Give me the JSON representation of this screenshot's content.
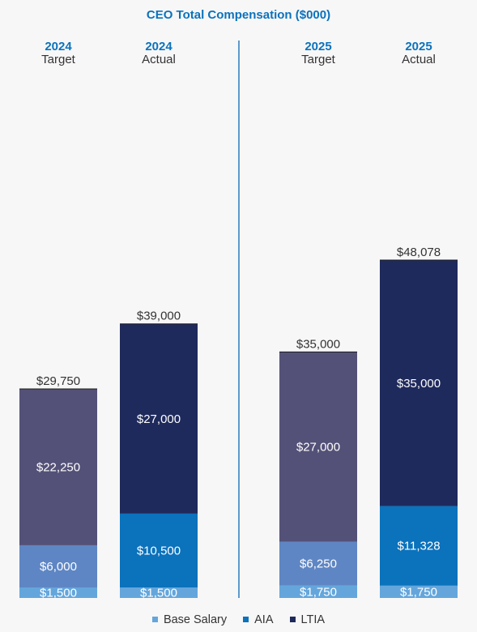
{
  "chart_data": {
    "type": "bar",
    "stacked": true,
    "title": "CEO Total Compensation ($000)",
    "groups": [
      {
        "year": "2024",
        "label": "Target",
        "total": 29750,
        "total_label": "$29,750",
        "values": [
          1500,
          6000,
          22250
        ],
        "value_labels": [
          "$1,500",
          "$6,000",
          "$22,250"
        ],
        "style": "target"
      },
      {
        "year": "2024",
        "label": "Actual",
        "total": 39000,
        "total_label": "$39,000",
        "values": [
          1500,
          10500,
          27000
        ],
        "value_labels": [
          "$1,500",
          "$10,500",
          "$27,000"
        ],
        "style": "actual"
      },
      {
        "year": "2025",
        "label": "Target",
        "total": 35000,
        "total_label": "$35,000",
        "values": [
          1750,
          6250,
          27000
        ],
        "value_labels": [
          "$1,750",
          "$6,250",
          "$27,000"
        ],
        "style": "target"
      },
      {
        "year": "2025",
        "label": "Actual",
        "total": 48078,
        "total_label": "$48,078",
        "values": [
          1750,
          11328,
          35000
        ],
        "value_labels": [
          "$1,750",
          "$11,328",
          "$35,000"
        ],
        "style": "actual"
      }
    ],
    "series": [
      {
        "name": "Base Salary",
        "color": "#64a6dc"
      },
      {
        "name": "AIA",
        "color": "#0b72bc"
      },
      {
        "name": "LTIA",
        "color": "#1f2a5c"
      }
    ],
    "target_colors": [
      "#64a6dc",
      "#5f86c4",
      "#545178"
    ],
    "actual_colors": [
      "#64a6dc",
      "#0b72bc",
      "#1f2a5c"
    ],
    "divider_color": "#2a7bbf",
    "title_color": "#0b72bc",
    "ylim": [
      0,
      48078
    ]
  }
}
